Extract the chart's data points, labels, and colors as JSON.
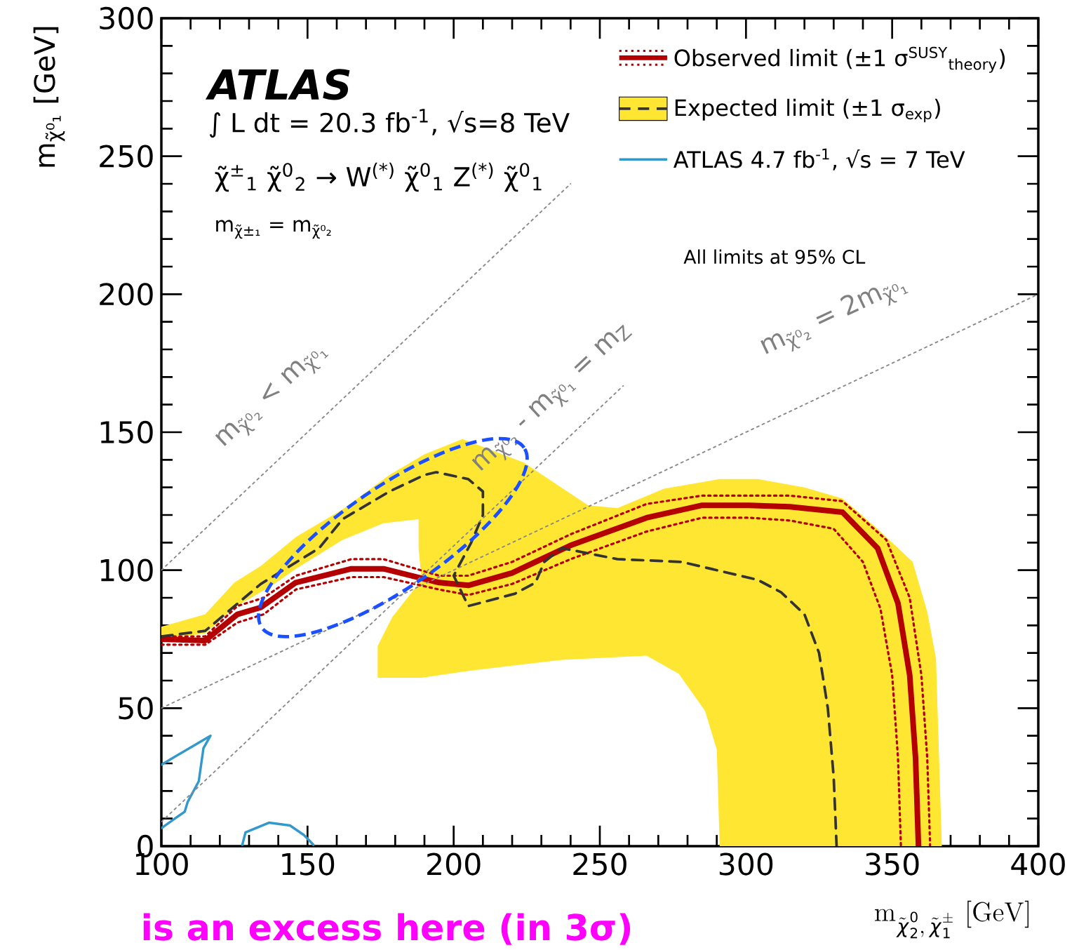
{
  "chart_data": {
    "type": "line",
    "xlabel": "\\mathrm{m}_{\\tilde{\\chi}^{0}_{2},\\,\\tilde{\\chi}^{\\pm}_{1}}\\ [\\mathrm{GeV}]",
    "ylabel": "m$_{χ̃⁰₁}$ [GeV]",
    "xlim": [
      100,
      400
    ],
    "ylim": [
      0,
      300
    ],
    "xticks": [
      100,
      150,
      200,
      250,
      300,
      350,
      400
    ],
    "yticks": [
      0,
      50,
      100,
      150,
      200,
      250,
      300
    ],
    "legend": "top right",
    "series": [
      {
        "color": "#b40000",
        "line_style": "dotted",
        "x": [
          100,
          115,
          126,
          135,
          146,
          165,
          176,
          195,
          205,
          220,
          240,
          266,
          285,
          301,
          315,
          333,
          348,
          356,
          360,
          362,
          363
        ],
        "values": [
          76,
          76,
          87,
          90,
          98,
          104,
          104,
          98,
          98,
          103,
          113,
          124,
          127,
          127,
          127,
          125,
          111,
          90,
          62,
          32,
          0
        ]
      },
      {
        "color": "#b40000",
        "line_style": "dotted",
        "x": [
          100,
          115,
          126,
          135,
          146,
          165,
          176,
          195,
          205,
          220,
          240,
          266,
          285,
          301,
          315,
          330,
          340,
          346,
          350,
          352,
          353
        ],
        "values": [
          73,
          73,
          81,
          84,
          93,
          97.5,
          97.5,
          93,
          91,
          95,
          104,
          114,
          119,
          119,
          118,
          115,
          103,
          86,
          62,
          32,
          0
        ]
      },
      {
        "name": "Observed limit (±1 σ$^{SUSY}$$_{theory}$)",
        "color": "#b40000",
        "line_style": "solid",
        "x": [
          100,
          115,
          126,
          134,
          146,
          165,
          176,
          195,
          205,
          220,
          240,
          266,
          285,
          301,
          315,
          333,
          345,
          352,
          356,
          358,
          359
        ],
        "values": [
          75,
          74.5,
          84,
          86.5,
          95.5,
          100.5,
          100.5,
          95.5,
          94.5,
          99,
          109,
          119,
          123.5,
          123.5,
          123,
          121,
          108,
          88,
          62,
          32,
          0
        ]
      },
      {
        "type": "area",
        "color": "#ffe633",
        "x": [
          100,
          115,
          125,
          134,
          146,
          162,
          178,
          190,
          203,
          224,
          246,
          256,
          272,
          291,
          304,
          320,
          333,
          345,
          357,
          362,
          365,
          367,
          291,
          290,
          286,
          277,
          266,
          237,
          205,
          189,
          174,
          174,
          179,
          189,
          188,
          188,
          176,
          162,
          146,
          138,
          125,
          115,
          100
        ],
        "values": [
          79.5,
          84,
          95.5,
          101.5,
          112,
          122,
          134.5,
          142,
          147.5,
          139,
          123.5,
          122.5,
          129.5,
          133,
          133,
          130,
          126,
          115,
          103,
          85,
          68,
          0,
          0,
          35,
          49,
          62.5,
          69,
          67.5,
          63.5,
          61,
          61,
          72.5,
          83,
          96.5,
          108,
          118.5,
          117,
          111,
          100.5,
          94.5,
          86.5,
          77,
          75
        ]
      },
      {
        "name": "Expected limit (±1 σ$_{exp}$)",
        "color": "#333333",
        "line_style": "dashed",
        "x": [
          100,
          115,
          134,
          154,
          162,
          178,
          190,
          194,
          205,
          210,
          210,
          206,
          200,
          205,
          221,
          228,
          231,
          237,
          256,
          278,
          304,
          312,
          320,
          325,
          328,
          330,
          331
        ],
        "values": [
          76,
          78,
          95,
          108,
          118.5,
          128.5,
          134.5,
          135.5,
          133,
          128.5,
          120,
          110,
          98,
          87,
          91.5,
          95.5,
          103,
          108,
          104,
          103,
          96.5,
          92,
          84,
          70,
          50,
          25,
          0
        ]
      },
      {
        "name": "ATLAS 4.7 fb$^{-1}$, √s = 7 TeV",
        "color": "#3399cc",
        "line_style": "solid",
        "x": [
          100,
          116.8,
          114.4,
          112.8,
          109,
          108,
          100,
          null,
          127.7,
          128.8,
          136.8,
          144,
          148.8,
          152
        ],
        "values": [
          29.5,
          40,
          35.5,
          23.5,
          16,
          12.5,
          6.5,
          null,
          0.5,
          5,
          8.5,
          7.5,
          4,
          0.5
        ]
      },
      {
        "color": "#888888",
        "line_style": "dotted",
        "x": [
          100,
          240
        ],
        "values": [
          100,
          240
        ]
      },
      {
        "color": "#888888",
        "line_style": "dotted",
        "x": [
          100,
          258
        ],
        "values": [
          8.8,
          166.8
        ]
      },
      {
        "color": "#888888",
        "line_style": "dotted",
        "x": [
          100,
          400
        ],
        "values": [
          50,
          200
        ]
      }
    ],
    "annotations": [
      "ATLAS",
      "∫ L dt = 20.3 fb$^{-1}$, √s=8 TeV",
      "χ̃$^{±}$$_{1}$ χ̃$^{0}$$_{2}$ → W$^{(*)}$ χ̃$^{0}$$_{1}$ Z$^{(*)}$ χ̃$^{0}$$_{1}$",
      "m$_{χ̃±₁}$ = m$_{χ̃⁰₂}$",
      "All limits at 95% CL",
      "m$_{χ̃⁰₂}$ < m$_{χ̃⁰₁}$",
      "m$_{χ̃⁰₂}$ - m$_{χ̃⁰₁}$ = m$_{Z}$",
      "m$_{χ̃⁰₂}$ = 2m$_{χ̃⁰₁}$",
      "is an excess here (in 3σ)"
    ]
  }
}
